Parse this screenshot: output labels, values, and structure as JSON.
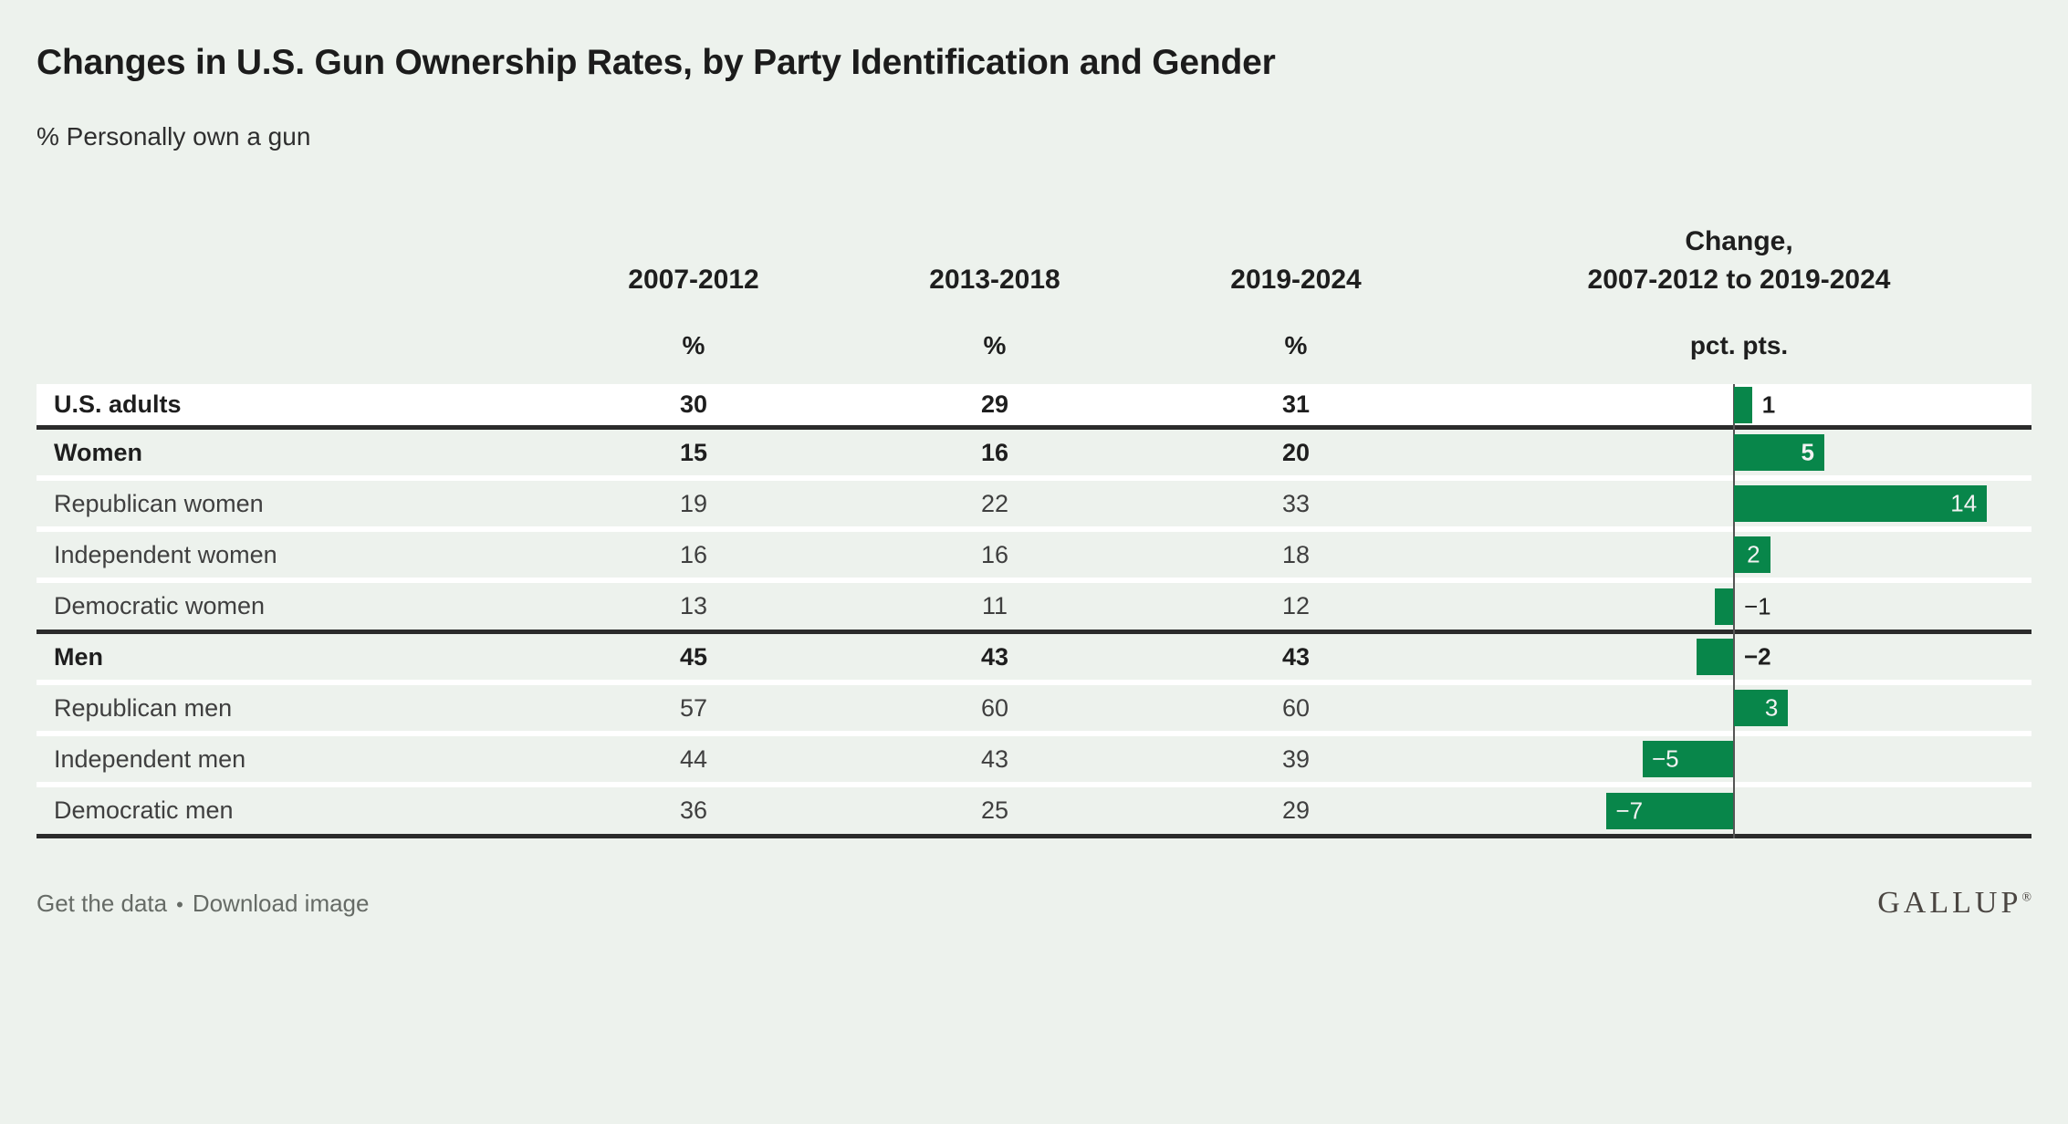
{
  "page": {
    "title": "Changes in U.S. Gun Ownership Rates, by Party Identification and Gender",
    "subtitle": "% Personally own a gun"
  },
  "table": {
    "period_headers": [
      "2007-2012",
      "2013-2018",
      "2019-2024"
    ],
    "change_header_line1": "Change,",
    "change_header_line2": "2007-2012 to 2019-2024",
    "period_unit": "%",
    "change_unit": "pct. pts.",
    "rows": [
      {
        "label": "U.S. adults",
        "values": [
          "30",
          "29",
          "31"
        ],
        "change": 1,
        "change_label": "1",
        "bold": true,
        "highlight": true,
        "rule_below": true
      },
      {
        "label": "Women",
        "values": [
          "15",
          "16",
          "20"
        ],
        "change": 5,
        "change_label": "5",
        "bold": true,
        "highlight": false,
        "rule_below": false
      },
      {
        "label": "Republican women",
        "values": [
          "19",
          "22",
          "33"
        ],
        "change": 14,
        "change_label": "14",
        "bold": false,
        "highlight": false,
        "rule_below": false
      },
      {
        "label": "Independent women",
        "values": [
          "16",
          "16",
          "18"
        ],
        "change": 2,
        "change_label": "2",
        "bold": false,
        "highlight": false,
        "rule_below": false
      },
      {
        "label": "Democratic women",
        "values": [
          "13",
          "11",
          "12"
        ],
        "change": -1,
        "change_label": "−1",
        "bold": false,
        "highlight": false,
        "rule_below": true
      },
      {
        "label": "Men",
        "values": [
          "45",
          "43",
          "43"
        ],
        "change": -2,
        "change_label": "−2",
        "bold": true,
        "highlight": false,
        "rule_below": false
      },
      {
        "label": "Republican men",
        "values": [
          "57",
          "60",
          "60"
        ],
        "change": 3,
        "change_label": "3",
        "bold": false,
        "highlight": false,
        "rule_below": false
      },
      {
        "label": "Independent men",
        "values": [
          "44",
          "43",
          "39"
        ],
        "change": -5,
        "change_label": "−5",
        "bold": false,
        "highlight": false,
        "rule_below": false
      },
      {
        "label": "Democratic men",
        "values": [
          "36",
          "25",
          "29"
        ],
        "change": -7,
        "change_label": "−7",
        "bold": false,
        "highlight": false,
        "rule_below": true
      }
    ]
  },
  "footer": {
    "link1": "Get the data",
    "separator": "•",
    "link2": "Download image",
    "logo": "GALLUP",
    "registered": "®"
  },
  "colors": {
    "background": "#edf2ed",
    "bar_green": "#08864a",
    "rule_dark": "#2b2b2b",
    "axis_line": "#555555",
    "highlight_row": "#ffffff",
    "text_dark": "#1e1e1e",
    "text_regular": "#3f3f3f",
    "bar_label_light": "#f2f2f2",
    "footer_text": "#666b66"
  },
  "chart_data": {
    "type": "table",
    "title": "Changes in U.S. Gun Ownership Rates, by Party Identification and Gender",
    "subtitle": "% Personally own a gun",
    "categories": [
      "U.S. adults",
      "Women",
      "Republican women",
      "Independent women",
      "Democratic women",
      "Men",
      "Republican men",
      "Independent men",
      "Democratic men"
    ],
    "series": [
      {
        "name": "2007-2012",
        "unit": "%",
        "values": [
          30,
          15,
          19,
          16,
          13,
          45,
          57,
          44,
          36
        ]
      },
      {
        "name": "2013-2018",
        "unit": "%",
        "values": [
          29,
          16,
          22,
          16,
          11,
          43,
          60,
          43,
          25
        ]
      },
      {
        "name": "2019-2024",
        "unit": "%",
        "values": [
          31,
          20,
          33,
          18,
          12,
          43,
          60,
          39,
          29
        ]
      },
      {
        "name": "Change, 2007-2012 to 2019-2024",
        "unit": "pct. pts.",
        "display": "bar",
        "values": [
          1,
          5,
          14,
          2,
          -1,
          -2,
          3,
          -5,
          -7
        ]
      }
    ],
    "bar_color": "#08864a",
    "zero_baseline": true,
    "legend_position": "none",
    "grid": false
  }
}
